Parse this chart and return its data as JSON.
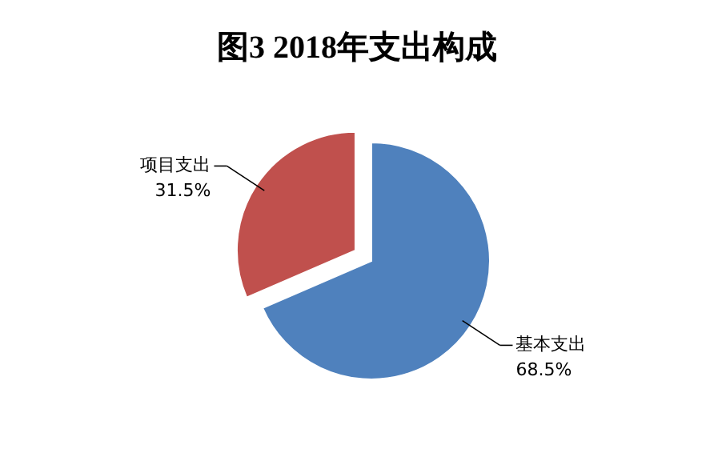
{
  "chart_data": {
    "type": "pie",
    "title": "图3    2018年支出构成",
    "categories": [
      "基本支出",
      "项目支出"
    ],
    "values": [
      68.5,
      31.5
    ],
    "colors": [
      "#4f81bd",
      "#c0504d"
    ],
    "value_labels": [
      "68.5%",
      "31.5%"
    ]
  }
}
